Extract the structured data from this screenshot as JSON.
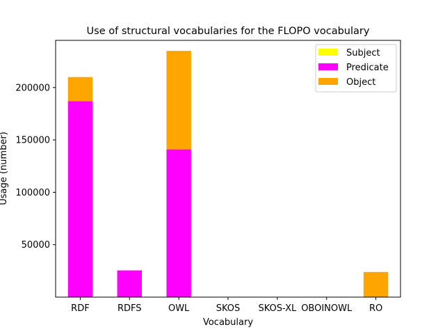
{
  "chart_data": {
    "type": "bar",
    "stacked": true,
    "title": "Use of structural vocabularies for the FLOPO vocabulary",
    "xlabel": "Vocabulary",
    "ylabel": "Usage (number)",
    "categories": [
      "RDF",
      "RDFS",
      "OWL",
      "SKOS",
      "SKOS-XL",
      "OBOINOWL",
      "RO"
    ],
    "ylim": [
      0,
      245000
    ],
    "yticks": [
      50000,
      100000,
      150000,
      200000
    ],
    "ytick_labels": [
      "50000",
      "100000",
      "150000",
      "200000"
    ],
    "grid": false,
    "legend_position": "top-right",
    "series": [
      {
        "name": "Subject",
        "color": "#ffff00",
        "values": [
          0,
          0,
          0,
          0,
          0,
          0,
          0
        ]
      },
      {
        "name": "Predicate",
        "color": "#ff00ff",
        "values": [
          187000,
          25500,
          141000,
          0,
          0,
          0,
          0
        ]
      },
      {
        "name": "Object",
        "color": "#ffa500",
        "values": [
          23000,
          0,
          94000,
          0,
          0,
          0,
          24000
        ]
      }
    ]
  }
}
